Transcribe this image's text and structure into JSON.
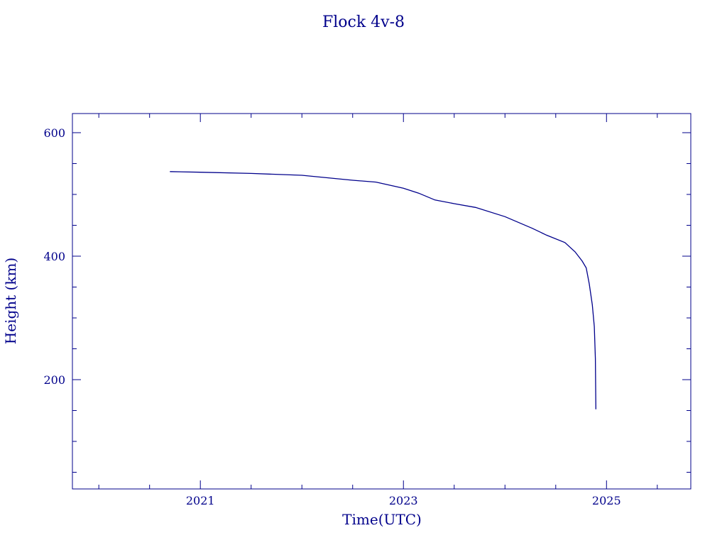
{
  "chart_data": {
    "type": "line",
    "title": "Flock 4v-8",
    "xlabel": "Time(UTC)",
    "ylabel": "Height (km)",
    "xlim": [
      2019.74,
      2025.83
    ],
    "ylim": [
      23,
      631
    ],
    "x_ticks": [
      2021,
      2023,
      2025
    ],
    "x_tick_labels": [
      "2021",
      "2023",
      "2025"
    ],
    "x_minor_step": 0.5,
    "y_ticks": [
      200,
      400,
      600
    ],
    "y_tick_labels": [
      "200",
      "400",
      "600"
    ],
    "y_minor_step": 50,
    "grid": false,
    "color": "#00008b",
    "series": [
      {
        "x": [
          2020.7,
          2021.0,
          2021.5,
          2022.0,
          2022.5,
          2022.73,
          2023.0,
          2023.15,
          2023.31,
          2023.5,
          2023.71,
          2024.0,
          2024.27,
          2024.41,
          2024.59,
          2024.69,
          2024.76,
          2024.8,
          2024.83,
          2024.86,
          2024.88,
          2024.89,
          2024.895
        ],
        "y": [
          537,
          536,
          534,
          531,
          523,
          520,
          510,
          502,
          491,
          485,
          479,
          464,
          445,
          434,
          422,
          407,
          392,
          381,
          355,
          321,
          286,
          234,
          152
        ]
      }
    ]
  }
}
